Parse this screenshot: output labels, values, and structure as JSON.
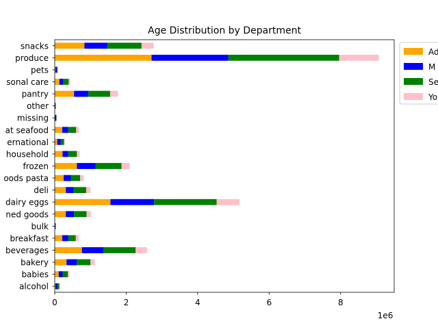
{
  "chart_data": {
    "type": "bar",
    "orientation": "horizontal",
    "stacked": true,
    "title": "Age Distribution by Department",
    "xlabel": "",
    "ylabel": "",
    "x_scale_label": "1e6",
    "xlim": [
      0,
      9500000
    ],
    "xticks": [
      0,
      2000000,
      4000000,
      6000000,
      8000000
    ],
    "xtick_labels": [
      "0",
      "2",
      "4",
      "6",
      "8"
    ],
    "grid": false,
    "legend_placement": "outside-top-right",
    "categories": [
      "alcohol",
      "babies",
      "bakery",
      "beverages",
      "breakfast",
      "bulk",
      "canned goods",
      "dairy eggs",
      "deli",
      "dry goods pasta",
      "frozen",
      "household",
      "international",
      "meat seafood",
      "missing",
      "other",
      "pantry",
      "personal care",
      "pets",
      "produce",
      "snacks"
    ],
    "category_labels_visible": [
      "alcohol",
      "babies",
      "bakery",
      "beverages",
      "breakfast",
      "bulk",
      "ned goods",
      "dairy eggs",
      "deli",
      "oods pasta",
      "frozen",
      "household",
      "ernational",
      "at seafood",
      "missing",
      "other",
      "pantry",
      "sonal care",
      "pets",
      "produce",
      "snacks"
    ],
    "series": [
      {
        "name": "Ad",
        "color": "#ffa500",
        "values": [
          20000,
          110000,
          330000,
          760000,
          210000,
          10000,
          310000,
          1560000,
          310000,
          250000,
          620000,
          220000,
          70000,
          210000,
          10000,
          10000,
          540000,
          130000,
          20000,
          2710000,
          830000
        ]
      },
      {
        "name": "M",
        "color": "#0000ff",
        "values": [
          60000,
          110000,
          290000,
          600000,
          170000,
          10000,
          230000,
          1220000,
          220000,
          200000,
          520000,
          160000,
          100000,
          170000,
          30000,
          10000,
          400000,
          100000,
          40000,
          2150000,
          650000
        ]
      },
      {
        "name": "Se",
        "color": "#008000",
        "values": [
          50000,
          150000,
          380000,
          900000,
          210000,
          10000,
          350000,
          1750000,
          350000,
          260000,
          730000,
          240000,
          90000,
          220000,
          10000,
          10000,
          610000,
          160000,
          20000,
          3100000,
          950000
        ]
      },
      {
        "name": "Yo",
        "color": "#ffc0cb",
        "values": [
          10000,
          40000,
          120000,
          320000,
          80000,
          5000,
          120000,
          640000,
          120000,
          100000,
          230000,
          80000,
          20000,
          80000,
          5000,
          5000,
          220000,
          50000,
          10000,
          1110000,
          340000
        ]
      }
    ]
  }
}
